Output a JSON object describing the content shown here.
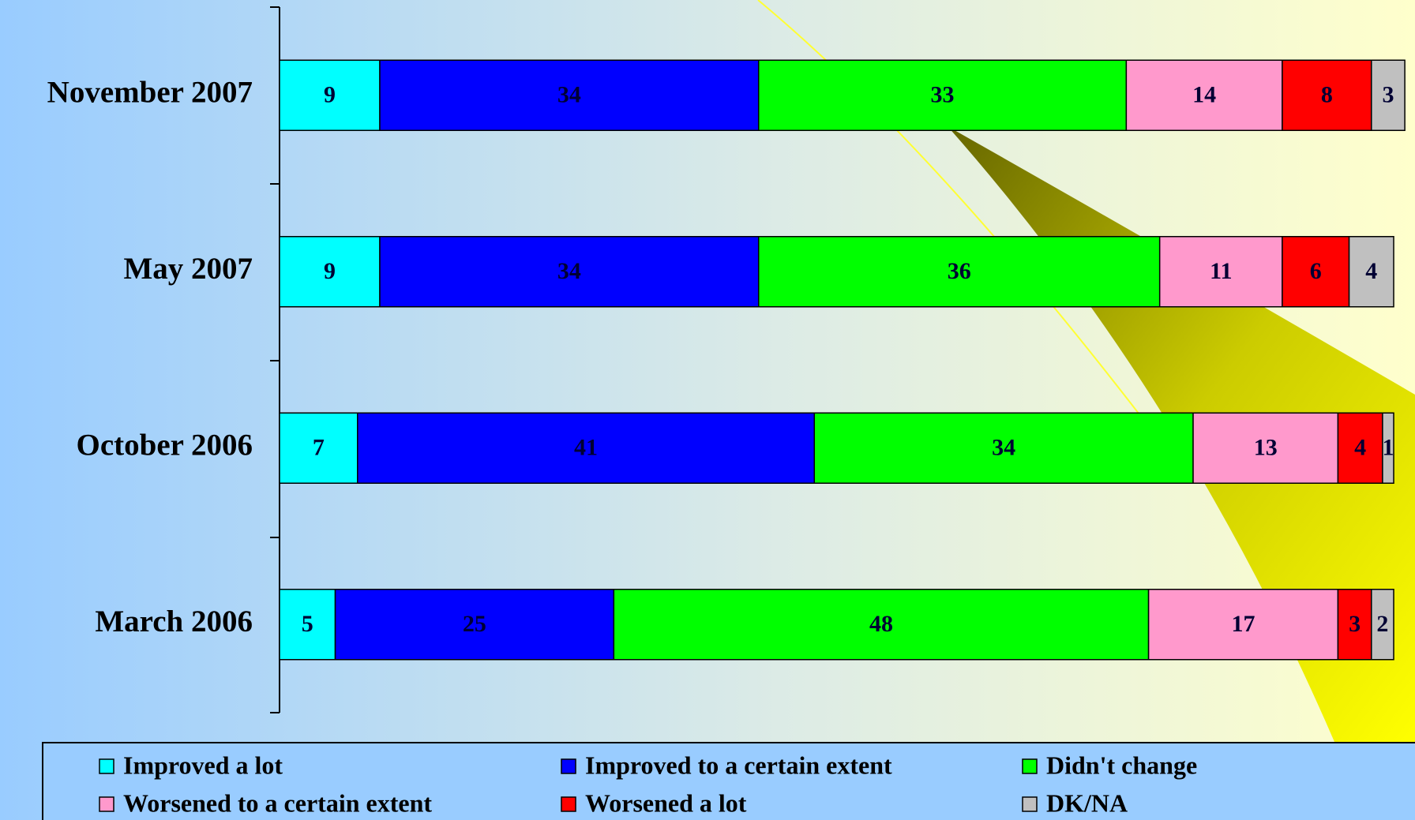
{
  "chart_data": {
    "type": "stacked-bar-horizontal",
    "categories": [
      "November 2007",
      "May 2007",
      "October 2006",
      "March 2006"
    ],
    "series": [
      {
        "name": "Improved a lot",
        "color": "#00ffff",
        "values": [
          9,
          9,
          7,
          5
        ]
      },
      {
        "name": "Improved to a certain extent",
        "color": "#0000ff",
        "values": [
          34,
          34,
          41,
          25
        ]
      },
      {
        "name": "Didn't change",
        "color": "#00ff00",
        "values": [
          33,
          36,
          34,
          48
        ]
      },
      {
        "name": "Worsened to a certain extent",
        "color": "#ff99cc",
        "values": [
          14,
          11,
          13,
          17
        ]
      },
      {
        "name": "Worsened a lot",
        "color": "#ff0000",
        "values": [
          8,
          6,
          4,
          3
        ]
      },
      {
        "name": "DK/NA",
        "color": "#c0c0c0",
        "values": [
          3,
          4,
          1,
          2
        ]
      }
    ],
    "xlim": [
      0,
      100
    ]
  }
}
